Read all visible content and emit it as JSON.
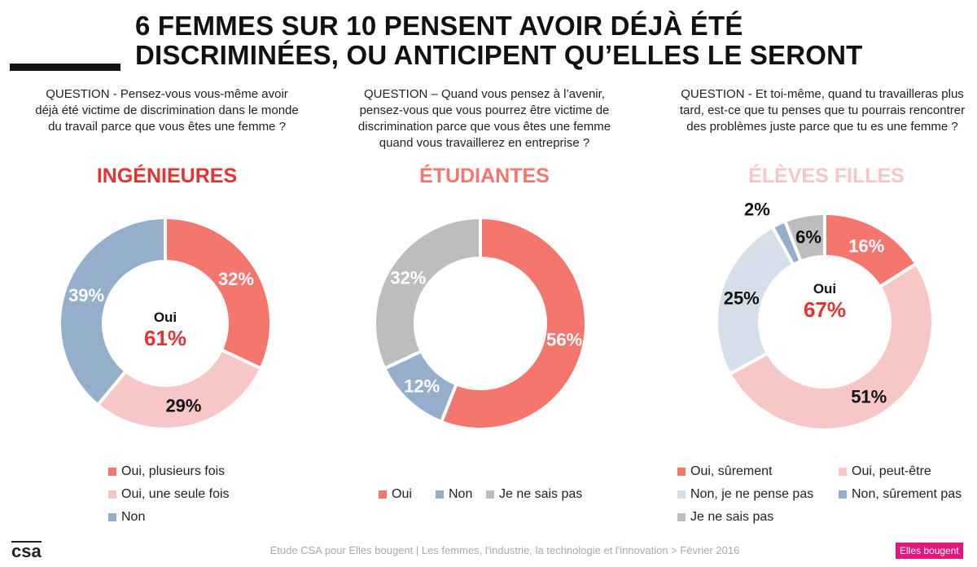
{
  "title_lines": [
    "6 FEMMES SUR 10 PENSENT AVOIR DÉJÀ ÉTÉ",
    "DISCRIMINÉES, OU ANTICIPENT QU’ELLES LE SERONT"
  ],
  "colors": {
    "oui_plusieurs": "#f4766c",
    "oui_une": "#f7c6c6",
    "non": "#94aecb",
    "non_pense_pas": "#d5dfea",
    "gray": "#bdbdbd",
    "red": "#e8322f"
  },
  "chart_data": [
    {
      "type": "pie",
      "variant": "donut",
      "title": "INGÉNIEURES",
      "title_color": "#e8322f",
      "question": "QUESTION - Pensez-vous vous-même avoir déjà été victime de discrimination dans le monde du travail parce que vous êtes une femme ?",
      "center_label": "Oui",
      "center_value": "61%",
      "slices": [
        {
          "name": "Oui, plusieurs fois",
          "value": 32,
          "label": "32%",
          "color": "#f4766c",
          "label_color": "#ffffff"
        },
        {
          "name": "Oui, une seule fois",
          "value": 29,
          "label": "29%",
          "color": "#f7c6c6",
          "label_color": "#111111"
        },
        {
          "name": "Non",
          "value": 39,
          "label": "39%",
          "color": "#94aecb",
          "label_color": "#ffffff"
        }
      ]
    },
    {
      "type": "pie",
      "variant": "donut",
      "title": "ÉTUDIANTES",
      "title_color": "#f4766c",
      "question": "QUESTION – Quand vous pensez à l’avenir, pensez-vous que vous pourrez être victime de discrimination parce que vous êtes une femme quand vous travaillerez en entreprise ?",
      "slices": [
        {
          "name": "Oui",
          "value": 56,
          "label": "56%",
          "color": "#f4766c",
          "label_color": "#ffffff"
        },
        {
          "name": "Non",
          "value": 12,
          "label": "12%",
          "color": "#94aecb",
          "label_color": "#ffffff"
        },
        {
          "name": "Je ne sais pas",
          "value": 32,
          "label": "32%",
          "color": "#bdbdbd",
          "label_color": "#ffffff"
        }
      ]
    },
    {
      "type": "pie",
      "variant": "donut",
      "title": "ÉLÈVES FILLES",
      "title_color": "#f7c6c6",
      "question": "QUESTION - Et toi-même, quand tu travailleras plus tard, est-ce que tu penses que tu pourrais rencontrer des problèmes juste parce que tu es une femme ?",
      "center_label": "Oui",
      "center_value": "67%",
      "slices": [
        {
          "name": "Oui, sûrement",
          "value": 16,
          "label": "16%",
          "color": "#f4766c",
          "label_color": "#ffffff"
        },
        {
          "name": "Oui, peut-être",
          "value": 51,
          "label": "51%",
          "color": "#f7c6c6",
          "label_color": "#111111"
        },
        {
          "name": "Non, je ne pense pas",
          "value": 25,
          "label": "25%",
          "color": "#d5dfea",
          "label_color": "#111111"
        },
        {
          "name": "Non, sûrement pas",
          "value": 2,
          "label": "2%",
          "color": "#94aecb",
          "label_color": "#111111"
        },
        {
          "name": "Je ne sais pas",
          "value": 6,
          "label": "6%",
          "color": "#bdbdbd",
          "label_color": "#111111"
        }
      ]
    }
  ],
  "footer": "Etude CSA pour Elles bougent | Les femmes, l'industrie, la technologie et l'innovation > Février 2016",
  "logo_csa": "csa",
  "logo_eb": "Elles bougent"
}
